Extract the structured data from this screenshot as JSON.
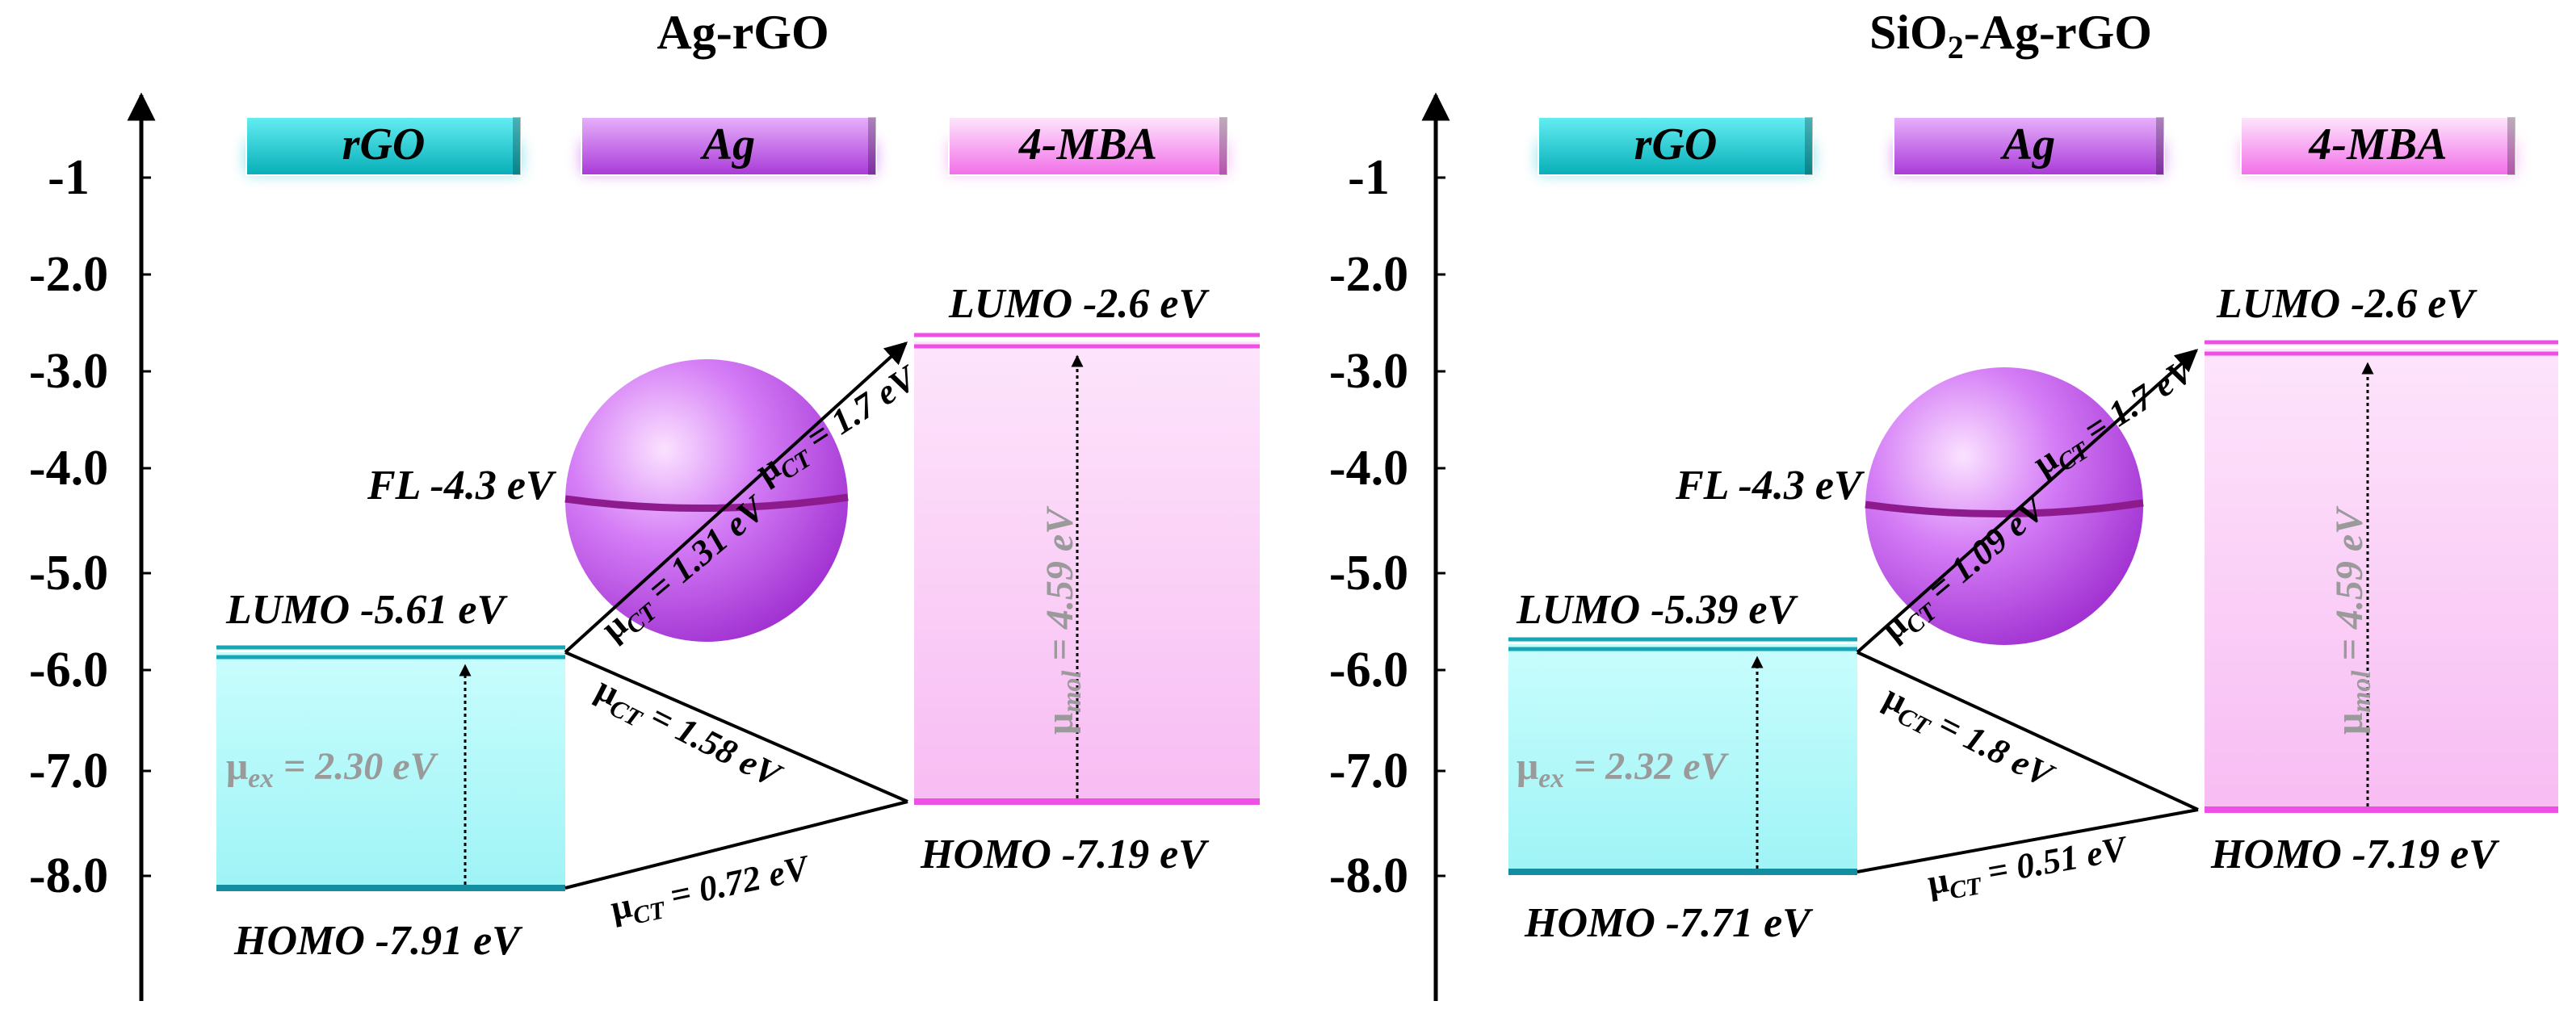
{
  "panels": [
    {
      "title": "Ag-rGO",
      "title_sub": "",
      "title_rest": "",
      "ticks": [
        "-1",
        "-2.0",
        "-3.0",
        "-4.0",
        "-5.0",
        "-6.0",
        "-7.0",
        "-8.0"
      ],
      "materials": [
        "rGO",
        "Ag",
        "4-MBA"
      ],
      "fl": "FL -4.3 eV",
      "rgo_lumo": "LUMO -5.61 eV",
      "rgo_homo": "HOMO -7.91 eV",
      "mba_lumo": "LUMO -2.6 eV",
      "mba_homo": "HOMO -7.19 eV",
      "ex": {
        "sub": "ex",
        "val": " = 2.30 eV"
      },
      "mol": {
        "sub": "mol",
        "val": " = 4.59 eV"
      },
      "ct1": {
        "sub": "CT",
        "val": " = 1.7 eV"
      },
      "ct2": {
        "sub": "CT",
        "val": " = 1.31 eV"
      },
      "ct3": {
        "sub": "CT",
        "val": " = 1.58 eV"
      },
      "ct4": {
        "sub": "CT",
        "val": " = 0.72 eV"
      }
    },
    {
      "title": "SiO",
      "title_sub": "2",
      "title_rest": "-Ag-rGO",
      "ticks": [
        "-1",
        "-2.0",
        "-3.0",
        "-4.0",
        "-5.0",
        "-6.0",
        "-7.0",
        "-8.0"
      ],
      "materials": [
        "rGO",
        "Ag",
        "4-MBA"
      ],
      "fl": "FL -4.3 eV",
      "rgo_lumo": "LUMO -5.39 eV",
      "rgo_homo": "HOMO -7.71 eV",
      "mba_lumo": "LUMO -2.6 eV",
      "mba_homo": "HOMO -7.19 eV",
      "ex": {
        "sub": "ex",
        "val": " = 2.32 eV"
      },
      "mol": {
        "sub": "mol",
        "val": " = 4.59 eV"
      },
      "ct1": {
        "sub": "CT",
        "val": " = 1.7 eV"
      },
      "ct2": {
        "sub": "CT",
        "val": " = 1.09 eV"
      },
      "ct3": {
        "sub": "CT",
        "val": " = 1.8 eV"
      },
      "ct4": {
        "sub": "CT",
        "val": " = 0.51 eV"
      }
    }
  ],
  "mu": "μ",
  "colors": {
    "rgo": "#12c6cf",
    "ag": "#b844e6",
    "mba": "#f36ff0",
    "rgo_fill": "#b3fbfb",
    "mba_fill": "#fbd2f7"
  }
}
